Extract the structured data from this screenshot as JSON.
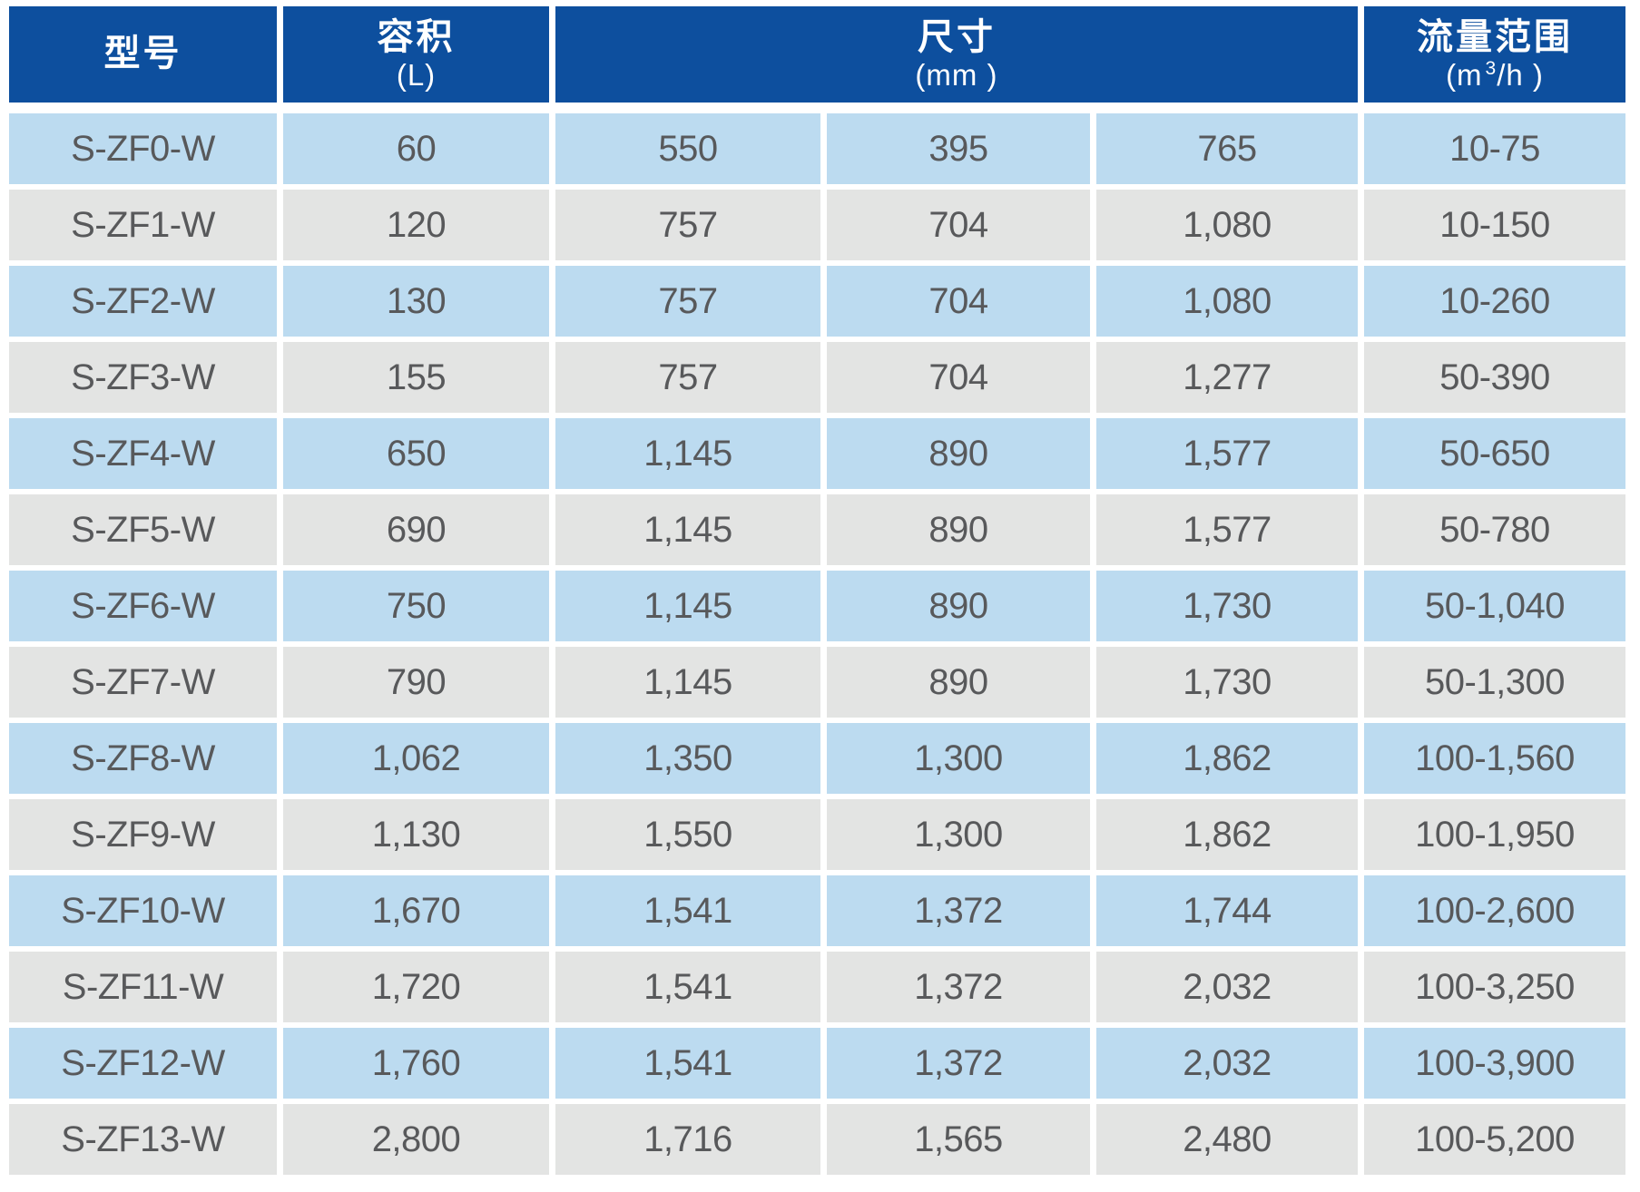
{
  "table": {
    "header": {
      "model": {
        "label": "型号"
      },
      "volume": {
        "label": "容积",
        "unit": "(L)"
      },
      "dimensions": {
        "label": "尺寸",
        "unit": "(mm )"
      },
      "flow": {
        "label": "流量范围",
        "unit_pre": "(m",
        "unit_sup": "3",
        "unit_post": "/h )"
      }
    },
    "rows": [
      [
        "S-ZF0-W",
        "60",
        "550",
        "395",
        "765",
        "10-75"
      ],
      [
        "S-ZF1-W",
        "120",
        "757",
        "704",
        "1,080",
        "10-150"
      ],
      [
        "S-ZF2-W",
        "130",
        "757",
        "704",
        "1,080",
        "10-260"
      ],
      [
        "S-ZF3-W",
        "155",
        "757",
        "704",
        "1,277",
        "50-390"
      ],
      [
        "S-ZF4-W",
        "650",
        "1,145",
        "890",
        "1,577",
        "50-650"
      ],
      [
        "S-ZF5-W",
        "690",
        "1,145",
        "890",
        "1,577",
        "50-780"
      ],
      [
        "S-ZF6-W",
        "750",
        "1,145",
        "890",
        "1,730",
        "50-1,040"
      ],
      [
        "S-ZF7-W",
        "790",
        "1,145",
        "890",
        "1,730",
        "50-1,300"
      ],
      [
        "S-ZF8-W",
        "1,062",
        "1,350",
        "1,300",
        "1,862",
        "100-1,560"
      ],
      [
        "S-ZF9-W",
        "1,130",
        "1,550",
        "1,300",
        "1,862",
        "100-1,950"
      ],
      [
        "S-ZF10-W",
        "1,670",
        "1,541",
        "1,372",
        "1,744",
        "100-2,600"
      ],
      [
        "S-ZF11-W",
        "1,720",
        "1,541",
        "1,372",
        "2,032",
        "100-3,250"
      ],
      [
        "S-ZF12-W",
        "1,760",
        "1,541",
        "1,372",
        "2,032",
        "100-3,900"
      ],
      [
        "S-ZF13-W",
        "2,800",
        "1,716",
        "1,565",
        "2,480",
        "100-5,200"
      ]
    ]
  },
  "colors": {
    "header_bg": "#0D4F9E",
    "header_text": "#FFFFFF",
    "row_blue": "#BCDBF0",
    "row_gray": "#E3E4E3",
    "cell_text": "#58595B",
    "gutter": "#FFFFFF"
  }
}
